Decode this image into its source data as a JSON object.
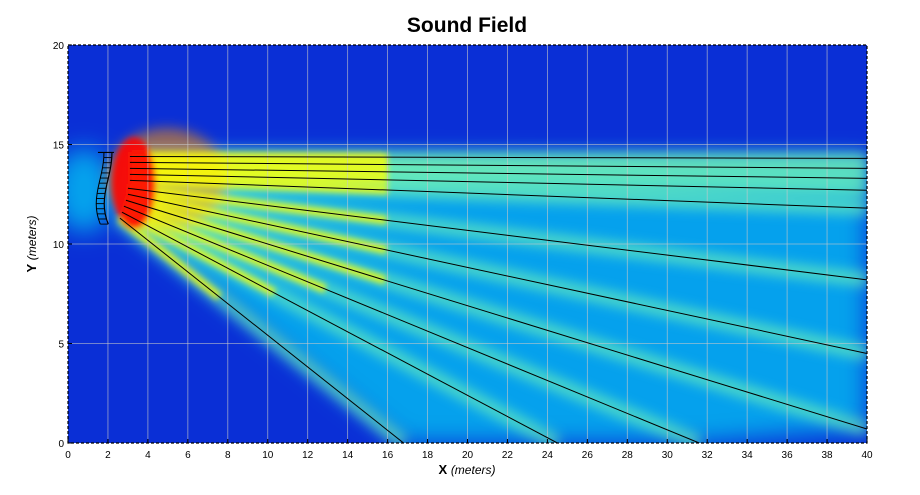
{
  "chart_data": {
    "type": "heatmap",
    "title": "Sound Field",
    "xlabel_var": "X",
    "xlabel_unit": "(meters)",
    "ylabel_var": "Y",
    "ylabel_unit": "(meters)",
    "xlim": [
      0,
      40
    ],
    "ylim": [
      0,
      20
    ],
    "x_ticks": [
      "0",
      "2",
      "4",
      "6",
      "8",
      "10",
      "12",
      "14",
      "16",
      "18",
      "20",
      "22",
      "24",
      "26",
      "28",
      "30",
      "32",
      "34",
      "36",
      "38",
      "40"
    ],
    "y_ticks": [
      "0",
      "5",
      "10",
      "15",
      "20"
    ],
    "grid": true,
    "colormap": "jet",
    "array_position": {
      "x": 2.2,
      "y": 12.8,
      "height_span": [
        11.0,
        14.6
      ]
    },
    "rays": [
      {
        "x0": 3.1,
        "y0": 14.4,
        "x1": 40,
        "y1": 14.3
      },
      {
        "x0": 3.1,
        "y0": 14.1,
        "x1": 40,
        "y1": 13.8
      },
      {
        "x0": 3.1,
        "y0": 13.8,
        "x1": 40,
        "y1": 13.3
      },
      {
        "x0": 3.1,
        "y0": 13.5,
        "x1": 40,
        "y1": 12.7
      },
      {
        "x0": 3.1,
        "y0": 13.2,
        "x1": 40,
        "y1": 11.8
      },
      {
        "x0": 3.0,
        "y0": 12.8,
        "x1": 40,
        "y1": 8.2
      },
      {
        "x0": 3.0,
        "y0": 12.5,
        "x1": 40,
        "y1": 4.5
      },
      {
        "x0": 2.9,
        "y0": 12.2,
        "x1": 40,
        "y1": 0.7
      },
      {
        "x0": 2.8,
        "y0": 11.9,
        "x1": 31.6,
        "y1": 0
      },
      {
        "x0": 2.7,
        "y0": 11.6,
        "x1": 24.5,
        "y1": 0
      },
      {
        "x0": 2.6,
        "y0": 11.3,
        "x1": 16.8,
        "y1": 0
      }
    ],
    "colors": {
      "low": "#00008f",
      "mid": "#00ffff",
      "high": "#ffff00",
      "peak": "#ff0000"
    }
  }
}
